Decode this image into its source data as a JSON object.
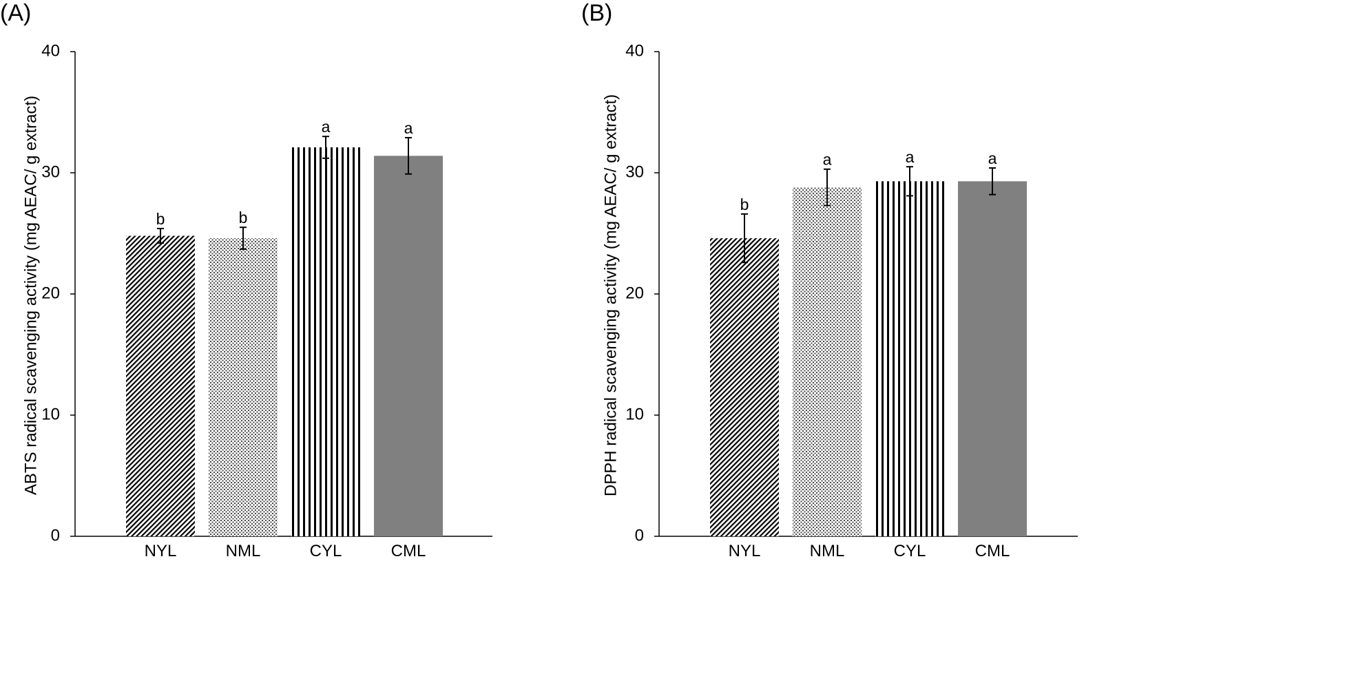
{
  "chart_data": [
    {
      "type": "bar",
      "panel_label": "(A)",
      "categories": [
        "NYL",
        "NML",
        "CYL",
        "CML"
      ],
      "values": [
        24.8,
        24.6,
        32.1,
        31.4
      ],
      "errors": [
        0.6,
        0.9,
        0.9,
        1.5
      ],
      "significance": [
        "b",
        "b",
        "a",
        "a"
      ],
      "patterns": [
        "diagonal-hatch",
        "dotted",
        "vertical-lines",
        "solid-gray"
      ],
      "ylabel": "ABTS radical scavenging activity (mg AEAC/ g extract)",
      "ylim": [
        0,
        40
      ],
      "yticks": [
        0,
        10,
        20,
        30,
        40
      ],
      "grid": false,
      "bar_color": "#808080",
      "pattern_color": "#000000"
    },
    {
      "type": "bar",
      "panel_label": "(B)",
      "categories": [
        "NYL",
        "NML",
        "CYL",
        "CML"
      ],
      "values": [
        24.6,
        28.8,
        29.3,
        29.3
      ],
      "errors": [
        2.0,
        1.5,
        1.2,
        1.1
      ],
      "significance": [
        "b",
        "a",
        "a",
        "a"
      ],
      "patterns": [
        "diagonal-hatch",
        "dotted",
        "vertical-lines",
        "solid-gray"
      ],
      "ylabel": "DPPH radical scavenging activity (mg AEAC/ g extract)",
      "ylim": [
        0,
        40
      ],
      "yticks": [
        0,
        10,
        20,
        30,
        40
      ],
      "grid": false,
      "bar_color": "#808080",
      "pattern_color": "#000000"
    }
  ]
}
